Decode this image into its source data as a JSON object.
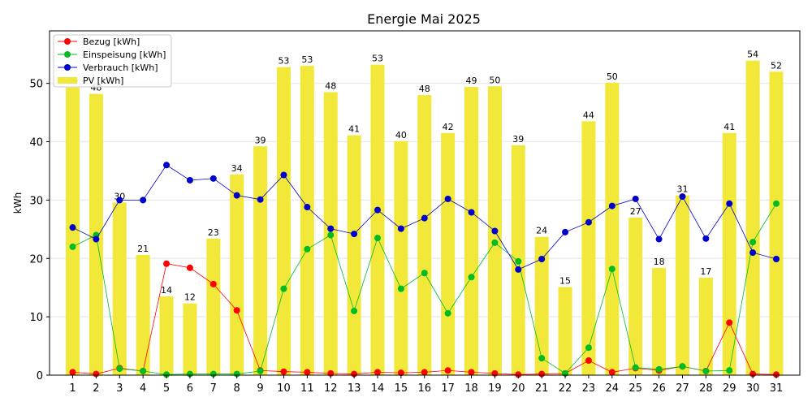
{
  "chart_data": {
    "type": "bar",
    "title": "Energie Mai 2025",
    "xlabel": "",
    "ylabel": "kWh",
    "ylim": [
      0,
      59
    ],
    "yticks": [
      0,
      10,
      20,
      30,
      40,
      50
    ],
    "grid": "y",
    "legend_position": "top-left",
    "categories": [
      "1",
      "2",
      "3",
      "4",
      "5",
      "6",
      "7",
      "8",
      "9",
      "10",
      "11",
      "12",
      "13",
      "14",
      "15",
      "16",
      "17",
      "18",
      "19",
      "20",
      "21",
      "22",
      "23",
      "24",
      "25",
      "26",
      "27",
      "28",
      "29",
      "30",
      "31"
    ],
    "bars": {
      "name": "PV [kWh]",
      "color": "#f2e83a",
      "values": [
        49.3,
        48.2,
        29.6,
        20.6,
        13.5,
        12.3,
        23.4,
        34.4,
        39.2,
        52.8,
        53.0,
        48.5,
        41.1,
        53.2,
        40.1,
        48.0,
        41.5,
        49.4,
        49.5,
        39.4,
        23.7,
        15.1,
        43.5,
        50.1,
        27.0,
        18.4,
        30.8,
        16.7,
        41.5,
        53.9,
        52.0
      ],
      "labels": [
        "49",
        "48",
        "30",
        "21",
        "14",
        "12",
        "23",
        "34",
        "39",
        "53",
        "53",
        "48",
        "41",
        "53",
        "40",
        "48",
        "42",
        "49",
        "50",
        "39",
        "24",
        "15",
        "44",
        "50",
        "27",
        "18",
        "31",
        "17",
        "41",
        "54",
        "52"
      ]
    },
    "series": [
      {
        "name": "Bezug [kWh]",
        "color": "#ff0000",
        "values": [
          0.5,
          0.2,
          1.2,
          0.7,
          19.1,
          18.4,
          15.6,
          11.1,
          0.8,
          0.6,
          0.5,
          0.3,
          0.2,
          0.5,
          0.4,
          0.5,
          0.8,
          0.5,
          0.3,
          0.1,
          0.2,
          0.3,
          2.5,
          0.5,
          1.2,
          0.8,
          1.5,
          0.7,
          9.0,
          0.2,
          0.1
        ]
      },
      {
        "name": "Einspeisung [kWh]",
        "color": "#00bb22",
        "values": [
          22.0,
          24.0,
          1.1,
          0.7,
          0.1,
          0.2,
          0.2,
          0.2,
          0.7,
          14.8,
          21.6,
          24.0,
          11.0,
          23.5,
          14.8,
          17.5,
          10.6,
          16.8,
          22.7,
          19.5,
          2.9,
          0.3,
          4.7,
          18.2,
          1.3,
          1.0,
          1.5,
          0.7,
          0.8,
          22.8,
          29.4
        ]
      },
      {
        "name": "Verbrauch [kWh]",
        "color": "#0000cc",
        "values": [
          25.3,
          23.3,
          30.0,
          30.0,
          36.0,
          33.4,
          33.7,
          30.8,
          30.1,
          34.3,
          28.8,
          25.1,
          24.2,
          28.3,
          25.1,
          26.9,
          30.2,
          27.9,
          24.7,
          18.1,
          19.9,
          24.5,
          26.2,
          29.0,
          30.2,
          23.3,
          30.6,
          23.4,
          29.4,
          21.0,
          19.9
        ]
      }
    ],
    "legend": [
      "Bezug [kWh]",
      "Einspeisung [kWh]",
      "Verbrauch [kWh]",
      "PV [kWh]"
    ]
  }
}
